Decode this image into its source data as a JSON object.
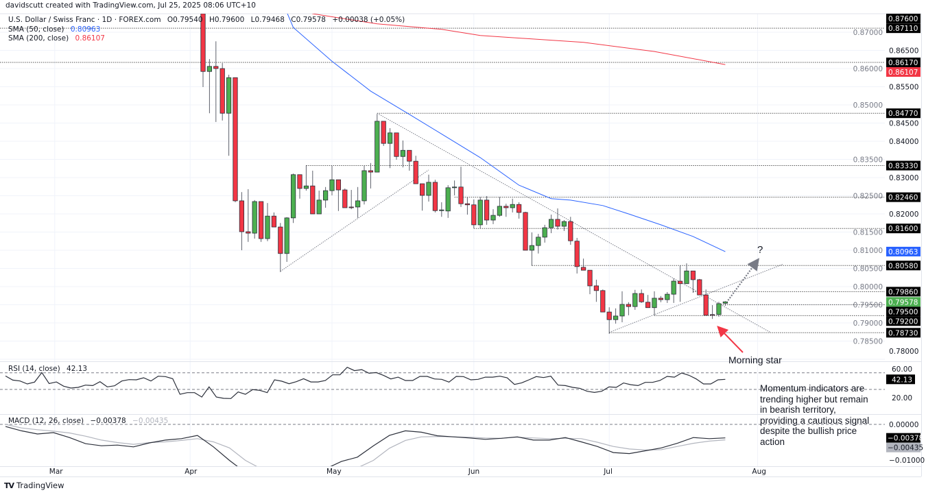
{
  "header": {
    "creator": "davidscutt created with TradingView.com, Jul 25, 2025 08:06 UTC+10",
    "symbol": "U.S. Dollar / Swiss Franc · 1D · FOREX.com",
    "ohlc": [
      "O0.79540",
      "H0.79600",
      "L0.79468",
      "C0.79578",
      "+0.00038 (+0.05%)"
    ]
  },
  "indicators": {
    "sma50": {
      "label": "SMA (50, close)",
      "value": "0.80963",
      "color": "#2962ff"
    },
    "sma200": {
      "label": "SMA (200, close)",
      "value": "0.86107",
      "color": "#f23645"
    },
    "rsi": {
      "label": "RSI (14, close)",
      "value": "42.13"
    },
    "macd": {
      "label": "MACD (12, 26, close)",
      "value": "−0.00378",
      "signal": "−0.00435"
    }
  },
  "annotations": {
    "question": "?",
    "pattern": "Morning star",
    "comment": "Momentum indicators are trending higher but remain in bearish territory, providing a cautious signal despite the bullish price action"
  },
  "footer": {
    "logo": "TradingView"
  },
  "colors": {
    "up": "#4caf50",
    "down": "#f23645",
    "sma50": "#2962ff",
    "sma200": "#f23645",
    "arrow": "#f23645"
  },
  "chart_data": {
    "type": "candlestick",
    "symbol": "USDCHF",
    "interval": "1D",
    "candles_start": "2025-04-03",
    "candles": [
      [
        0.8751,
        0.876,
        0.8549,
        0.8592
      ],
      [
        0.8592,
        0.8626,
        0.8477,
        0.8606
      ],
      [
        0.8606,
        0.8675,
        0.8453,
        0.86
      ],
      [
        0.86,
        0.8615,
        0.8457,
        0.8477
      ],
      [
        0.8477,
        0.8583,
        0.836,
        0.8575
      ],
      [
        0.8575,
        0.8575,
        0.8232,
        0.8236
      ],
      [
        0.8236,
        0.826,
        0.81,
        0.8151
      ],
      [
        0.8151,
        0.8268,
        0.8123,
        0.8147
      ],
      [
        0.8147,
        0.8238,
        0.8132,
        0.8234
      ],
      [
        0.8234,
        0.8234,
        0.8123,
        0.8132
      ],
      [
        0.8132,
        0.823,
        0.8125,
        0.8194
      ],
      [
        0.8194,
        0.8204,
        0.8164,
        0.8164
      ],
      [
        0.8164,
        0.8175,
        0.804,
        0.8091
      ],
      [
        0.8091,
        0.8191,
        0.8068,
        0.8189
      ],
      [
        0.8189,
        0.8311,
        0.8175,
        0.8308
      ],
      [
        0.8308,
        0.8308,
        0.8242,
        0.827
      ],
      [
        0.827,
        0.8334,
        0.8264,
        0.8277
      ],
      [
        0.8277,
        0.8319,
        0.82,
        0.82
      ],
      [
        0.82,
        0.8264,
        0.82,
        0.8238
      ],
      [
        0.8238,
        0.8274,
        0.8217,
        0.8264
      ],
      [
        0.8264,
        0.8332,
        0.8251,
        0.8294
      ],
      [
        0.8294,
        0.8294,
        0.8208,
        0.8266
      ],
      [
        0.8266,
        0.827,
        0.8217,
        0.8217
      ],
      [
        0.8219,
        0.8266,
        0.8213,
        0.8217
      ],
      [
        0.8219,
        0.8274,
        0.8189,
        0.8236
      ],
      [
        0.8236,
        0.8332,
        0.8226,
        0.8319
      ],
      [
        0.8319,
        0.834,
        0.827,
        0.8315
      ],
      [
        0.8315,
        0.8475,
        0.8315,
        0.8455
      ],
      [
        0.8455,
        0.8455,
        0.8387,
        0.8394
      ],
      [
        0.8394,
        0.8436,
        0.8326,
        0.8423
      ],
      [
        0.8423,
        0.8423,
        0.8349,
        0.8358
      ],
      [
        0.8358,
        0.8402,
        0.8328,
        0.8375
      ],
      [
        0.8375,
        0.8375,
        0.8319,
        0.8345
      ],
      [
        0.8345,
        0.836,
        0.8283,
        0.8283
      ],
      [
        0.8283,
        0.8283,
        0.8209,
        0.8251
      ],
      [
        0.8251,
        0.8308,
        0.8234,
        0.8287
      ],
      [
        0.8287,
        0.8294,
        0.8204,
        0.8209
      ],
      [
        0.8209,
        0.8232,
        0.8192,
        0.8211
      ],
      [
        0.8208,
        0.8279,
        0.8189,
        0.8272
      ],
      [
        0.8272,
        0.8292,
        0.8251,
        0.8274
      ],
      [
        0.8274,
        0.833,
        0.8219,
        0.8228
      ],
      [
        0.8228,
        0.8247,
        0.8198,
        0.8225
      ],
      [
        0.8225,
        0.824,
        0.816,
        0.817
      ],
      [
        0.817,
        0.8247,
        0.816,
        0.8238
      ],
      [
        0.8238,
        0.8249,
        0.817,
        0.8183
      ],
      [
        0.8183,
        0.8213,
        0.8172,
        0.8196
      ],
      [
        0.8196,
        0.8247,
        0.8192,
        0.8221
      ],
      [
        0.8221,
        0.8228,
        0.8192,
        0.8217
      ],
      [
        0.8217,
        0.8242,
        0.8204,
        0.8226
      ],
      [
        0.8226,
        0.8232,
        0.8187,
        0.8204
      ],
      [
        0.8204,
        0.8206,
        0.81,
        0.81
      ],
      [
        0.81,
        0.8149,
        0.8057,
        0.8113
      ],
      [
        0.8113,
        0.8145,
        0.8091,
        0.8136
      ],
      [
        0.8136,
        0.817,
        0.8121,
        0.8162
      ],
      [
        0.8162,
        0.8198,
        0.8147,
        0.8185
      ],
      [
        0.8185,
        0.8215,
        0.8157,
        0.8166
      ],
      [
        0.8166,
        0.8183,
        0.8153,
        0.8179
      ],
      [
        0.8179,
        0.8192,
        0.8115,
        0.8126
      ],
      [
        0.8125,
        0.8134,
        0.8036,
        0.8055
      ],
      [
        0.8053,
        0.8077,
        0.8045,
        0.8045
      ],
      [
        0.8045,
        0.8045,
        0.7979,
        0.8002
      ],
      [
        0.8002,
        0.8019,
        0.7958,
        0.7989
      ],
      [
        0.7989,
        0.7992,
        0.793,
        0.793
      ],
      [
        0.793,
        0.7943,
        0.787,
        0.7909
      ],
      [
        0.7909,
        0.794,
        0.7898,
        0.7919
      ],
      [
        0.7919,
        0.7987,
        0.7902,
        0.7951
      ],
      [
        0.7951,
        0.7957,
        0.7921,
        0.7945
      ],
      [
        0.7945,
        0.7991,
        0.7936,
        0.7981
      ],
      [
        0.7981,
        0.7992,
        0.7955,
        0.7958
      ],
      [
        0.7957,
        0.7977,
        0.7942,
        0.7942
      ],
      [
        0.7942,
        0.7987,
        0.7921,
        0.7968
      ],
      [
        0.7968,
        0.7974,
        0.7957,
        0.7964
      ],
      [
        0.7964,
        0.7985,
        0.7955,
        0.7979
      ],
      [
        0.7979,
        0.8023,
        0.7955,
        0.8015
      ],
      [
        0.8015,
        0.8058,
        0.7958,
        0.8008
      ],
      [
        0.8008,
        0.8064,
        0.8008,
        0.8043
      ],
      [
        0.8043,
        0.8043,
        0.7983,
        0.8019
      ],
      [
        0.8019,
        0.8021,
        0.7977,
        0.7977
      ],
      [
        0.7977,
        0.7992,
        0.7921,
        0.7921
      ],
      [
        0.7923,
        0.7949,
        0.7911,
        0.7921
      ],
      [
        0.7923,
        0.7958,
        0.7917,
        0.7953
      ],
      [
        0.7954,
        0.796,
        0.7947,
        0.7958
      ]
    ],
    "sma50": [
      [
        "2025-04-22",
        0.8755
      ],
      [
        "2025-04-23",
        0.8713
      ],
      [
        "2025-05-01",
        0.862
      ],
      [
        "2025-05-09",
        0.8538
      ],
      [
        "2025-05-19",
        0.8474
      ],
      [
        "2025-05-26",
        0.842
      ],
      [
        "2025-06-03",
        0.8355
      ],
      [
        "2025-06-11",
        0.8279
      ],
      [
        "2025-06-18",
        0.8242
      ],
      [
        "2025-06-23",
        0.8238
      ],
      [
        "2025-06-30",
        0.8223
      ],
      [
        "2025-07-04",
        0.82
      ],
      [
        "2025-07-11",
        0.817
      ],
      [
        "2025-07-18",
        0.8138
      ],
      [
        "2025-07-25",
        0.8096
      ]
    ],
    "sma200": [
      [
        "2025-04-25",
        0.876
      ],
      [
        "2025-04-28",
        0.8751
      ],
      [
        "2025-05-12",
        0.8723
      ],
      [
        "2025-05-26",
        0.8708
      ],
      [
        "2025-06-03",
        0.8691
      ],
      [
        "2025-06-25",
        0.8672
      ],
      [
        "2025-07-10",
        0.8647
      ],
      [
        "2025-07-25",
        0.8611
      ]
    ],
    "trendlines": [
      {
        "from": [
          "2025-04-21",
          0.8042
        ],
        "to": [
          "2025-05-22",
          0.8321
        ]
      },
      {
        "from": [
          "2025-05-12",
          0.8477
        ],
        "to": [
          "2025-08-05",
          0.7874
        ]
      },
      {
        "from": [
          "2025-07-01",
          0.7874
        ],
        "to": [
          "2025-08-07",
          0.8062
        ]
      }
    ],
    "projection": {
      "from": [
        "2025-07-25",
        0.7962
      ],
      "to": [
        "2025-08-01",
        0.8072
      ]
    },
    "levels": [
      {
        "price": 0.8711,
        "from": null
      },
      {
        "price": 0.8617,
        "from": null
      },
      {
        "price": 0.8477,
        "from": "2025-05-12"
      },
      {
        "price": 0.8333,
        "from": "2025-04-25"
      },
      {
        "price": 0.8246,
        "from": "2025-05-28"
      },
      {
        "price": 0.816,
        "from": "2025-06-02"
      },
      {
        "price": 0.8058,
        "from": "2025-06-13"
      },
      {
        "price": 0.7986,
        "from": "2025-07-18"
      },
      {
        "price": 0.795,
        "from": "2025-07-24"
      },
      {
        "price": 0.792,
        "from": "2025-07-10"
      },
      {
        "price": 0.7873,
        "from": "2025-07-01"
      }
    ],
    "price_axis": {
      "range": [
        0.776,
        0.876
      ],
      "ticks": [
        "0.78000",
        "0.78500",
        "0.79000",
        "0.79500",
        "0.80000",
        "0.80500",
        "0.81000",
        "0.81500",
        "0.82000",
        "0.82500",
        "0.83000",
        "0.83500",
        "0.84000",
        "0.84500",
        "0.85000",
        "0.85500",
        "0.86000",
        "0.86500",
        "0.87000"
      ],
      "tags": [
        {
          "text": "0.87600",
          "price": 0.876,
          "bg": "#000000",
          "fg": "#ffffff"
        },
        {
          "text": "0.87110",
          "price": 0.8711,
          "bg": "#000000",
          "fg": "#ffffff"
        },
        {
          "text": "0.86170",
          "price": 0.8617,
          "bg": "#000000",
          "fg": "#ffffff"
        },
        {
          "text": "0.86107",
          "price": 0.86107,
          "bg": "#f23645",
          "fg": "#ffffff"
        },
        {
          "text": "0.84770",
          "price": 0.8477,
          "bg": "#000000",
          "fg": "#ffffff"
        },
        {
          "text": "0.83330",
          "price": 0.8333,
          "bg": "#000000",
          "fg": "#ffffff"
        },
        {
          "text": "0.82460",
          "price": 0.8246,
          "bg": "#000000",
          "fg": "#ffffff"
        },
        {
          "text": "0.81600",
          "price": 0.816,
          "bg": "#000000",
          "fg": "#ffffff"
        },
        {
          "text": "0.80963",
          "price": 0.80963,
          "bg": "#2962ff",
          "fg": "#ffffff"
        },
        {
          "text": "0.80580",
          "price": 0.8058,
          "bg": "#000000",
          "fg": "#ffffff"
        },
        {
          "text": "0.79860",
          "price": 0.7986,
          "bg": "#000000",
          "fg": "#ffffff"
        },
        {
          "text": "0.79578",
          "price": 0.79578,
          "bg": "#4caf50",
          "fg": "#ffffff"
        },
        {
          "text": "0.79500",
          "price": 0.795,
          "bg": "#000000",
          "fg": "#ffffff"
        },
        {
          "text": "0.79200",
          "price": 0.792,
          "bg": "#000000",
          "fg": "#ffffff"
        },
        {
          "text": "0.78730",
          "price": 0.7873,
          "bg": "#000000",
          "fg": "#ffffff"
        }
      ]
    },
    "time_axis": {
      "ticks": [
        [
          "2025-03-03",
          "Mar"
        ],
        [
          "2025-04-01",
          "Apr"
        ],
        [
          "2025-05-01",
          "May"
        ],
        [
          "2025-06-02",
          "Jun"
        ],
        [
          "2025-07-01",
          "Jul"
        ],
        [
          "2025-08-01",
          "Aug"
        ]
      ]
    },
    "rsi": {
      "ticks": [
        "60.00",
        "20.00"
      ],
      "tick_values": [
        60,
        20
      ],
      "bands": [
        50,
        30
      ],
      "tag": {
        "text": "42.13",
        "value": 42.13
      },
      "values": [
        46.2,
        41.2,
        40.1,
        36.6,
        38.8,
        50.3,
        37.1,
        39.0,
        33.8,
        31.6,
        32.4,
        35.2,
        34.6,
        39.3,
        33.0,
        34.3,
        40.1,
        41.8,
        41.5,
        44.0,
        40.1,
        45.9,
        45.4,
        42.9,
        24.1,
        26.1,
        26.1,
        20.8,
        33.0,
        20.8,
        19.2,
        18.9,
        26.9,
        24.1,
        29.7,
        28.8,
        26.1,
        41.5,
        39.9,
        36.8,
        39.3,
        42.9,
        39.0,
        39.0,
        40.7,
        47.6,
        47.6,
        56.7,
        52.6,
        53.9,
        49.5,
        50.3,
        46.8,
        42.6,
        44.8,
        40.7,
        40.7,
        45.7,
        45.7,
        42.6,
        42.1,
        38.8,
        45.7,
        45.4,
        41.5,
        42.1,
        44.8,
        44.8,
        45.9,
        44.0,
        36.0,
        37.9,
        41.5,
        45.4,
        44.3,
        45.9,
        35.2,
        34.6,
        32.4,
        31.3,
        27.7,
        26.3,
        27.7,
        33.0,
        32.4,
        37.7,
        35.7,
        34.6,
        38.5,
        38.5,
        40.7,
        45.7,
        44.8,
        49.8,
        47.0,
        42.6,
        36.6,
        36.6,
        41.5,
        42.13
      ]
    },
    "macd": {
      "ticks": [
        "0.00000",
        "−0.01000"
      ],
      "tick_values": [
        0,
        -0.01
      ],
      "tags": [
        {
          "text": "−0.00378",
          "value": -0.00378,
          "bg": "#000000",
          "fg": "#ffffff"
        },
        {
          "text": "−0.00435",
          "value": -0.00435,
          "bg": "#b2b5be",
          "fg": "#131722"
        }
      ],
      "macd": [
        -0.0006,
        -0.0018,
        -0.0027,
        -0.0023,
        -0.0037,
        -0.0054,
        -0.006,
        -0.0058,
        -0.0063,
        -0.0052,
        -0.0044,
        -0.004,
        -0.0031,
        -0.0063,
        -0.0101,
        -0.0135,
        -0.016,
        -0.0168,
        -0.0165,
        -0.0152,
        -0.0125,
        -0.0104,
        -0.0092,
        -0.006,
        -0.0031,
        -0.0018,
        -0.0022,
        -0.0032,
        -0.0035,
        -0.0038,
        -0.0042,
        -0.0039,
        -0.0035,
        -0.0044,
        -0.0044,
        -0.0037,
        -0.0049,
        -0.0062,
        -0.0079,
        -0.0082,
        -0.0074,
        -0.0066,
        -0.0053,
        -0.0037,
        -0.004,
        -0.00378
      ],
      "signal": [
        0.0,
        -0.001,
        -0.0015,
        -0.0019,
        -0.0024,
        -0.0033,
        -0.0044,
        -0.0051,
        -0.0056,
        -0.0051,
        -0.0049,
        -0.0045,
        -0.004,
        -0.0049,
        -0.0066,
        -0.0101,
        -0.0125,
        -0.0142,
        -0.0152,
        -0.0155,
        -0.015,
        -0.014,
        -0.0122,
        -0.0101,
        -0.0067,
        -0.0045,
        -0.0035,
        -0.0034,
        -0.0035,
        -0.0036,
        -0.0038,
        -0.0039,
        -0.0036,
        -0.0038,
        -0.004,
        -0.0039,
        -0.004,
        -0.005,
        -0.0062,
        -0.0069,
        -0.0072,
        -0.0071,
        -0.0062,
        -0.0053,
        -0.0047,
        -0.00435
      ]
    }
  }
}
